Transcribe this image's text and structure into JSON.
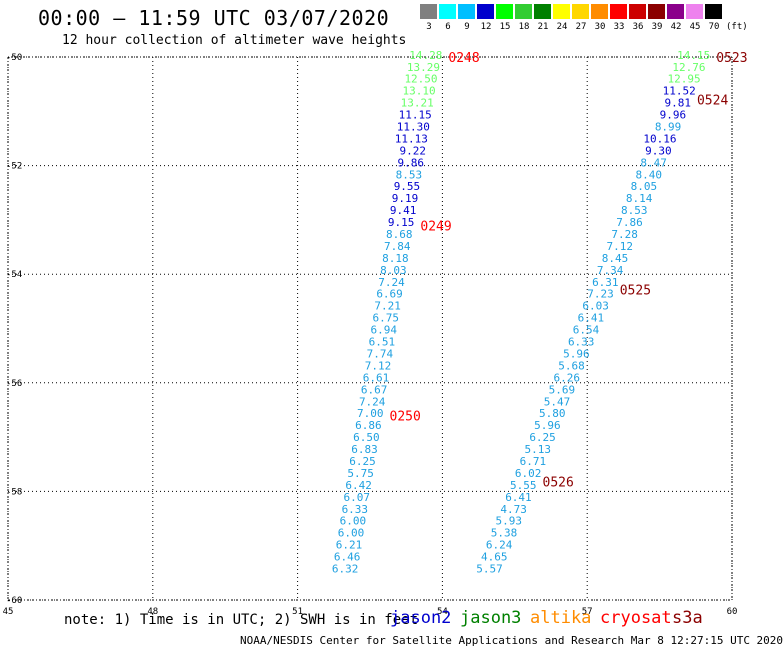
{
  "title": "00:00 – 11:59 UTC 03/07/2020",
  "subtitle": "12 hour collection of altimeter wave heights",
  "legend": {
    "unit": "(ft)",
    "bins": [
      {
        "label": "3",
        "color": "#808080"
      },
      {
        "label": "6",
        "color": "#00ffff"
      },
      {
        "label": "9",
        "color": "#00bfff"
      },
      {
        "label": "12",
        "color": "#0000cd"
      },
      {
        "label": "15",
        "color": "#00ff00"
      },
      {
        "label": "18",
        "color": "#32cd32"
      },
      {
        "label": "21",
        "color": "#008000"
      },
      {
        "label": "24",
        "color": "#ffff00"
      },
      {
        "label": "27",
        "color": "#ffd700"
      },
      {
        "label": "30",
        "color": "#ff8c00"
      },
      {
        "label": "33",
        "color": "#ff0000"
      },
      {
        "label": "36",
        "color": "#cd0000"
      },
      {
        "label": "39",
        "color": "#8b0000"
      },
      {
        "label": "42",
        "color": "#8b008b"
      },
      {
        "label": "45",
        "color": "#ee82ee"
      },
      {
        "label": "70",
        "color": "#000000"
      }
    ]
  },
  "map": {
    "lon_range": [
      45,
      60
    ],
    "lat_range": [
      -60,
      -50
    ],
    "x_ticks": [
      "45",
      "48",
      "51",
      "54",
      "57",
      "60"
    ],
    "y_ticks": [
      "-50",
      "-52",
      "-54",
      "-56",
      "-58",
      "-60"
    ],
    "grid": "dotted"
  },
  "tracks": [
    {
      "labels": [
        {
          "text": "0248",
          "lat": -50.0,
          "color": "#ff0000"
        },
        {
          "text": "0249",
          "lat": -53.1,
          "color": "#ff0000"
        },
        {
          "text": "0250",
          "lat": -56.6,
          "color": "#ff0000"
        }
      ],
      "points": [
        {
          "v": "14.28",
          "lat": -49.96,
          "lon": 54.0,
          "color": "#66ff66"
        },
        {
          "v": "13.29",
          "lat": -50.18,
          "lon": 53.95,
          "color": "#66ff66"
        },
        {
          "v": "12.50",
          "lat": -50.4,
          "lon": 53.9,
          "color": "#66ff66"
        },
        {
          "v": "13.10",
          "lat": -50.62,
          "lon": 53.86,
          "color": "#66ff66"
        },
        {
          "v": "13.21",
          "lat": -50.84,
          "lon": 53.82,
          "color": "#66ff66"
        },
        {
          "v": "11.15",
          "lat": -51.06,
          "lon": 53.78,
          "color": "#0000cd"
        },
        {
          "v": "11.30",
          "lat": -51.28,
          "lon": 53.74,
          "color": "#0000cd"
        },
        {
          "v": "11.13",
          "lat": -51.5,
          "lon": 53.7,
          "color": "#0000cd"
        },
        {
          "v": "9.22",
          "lat": -51.72,
          "lon": 53.66,
          "color": "#0000cd"
        },
        {
          "v": "9.86",
          "lat": -51.94,
          "lon": 53.62,
          "color": "#0000cd"
        },
        {
          "v": "8.53",
          "lat": -52.16,
          "lon": 53.58,
          "color": "#1fa0e0"
        },
        {
          "v": "9.55",
          "lat": -52.38,
          "lon": 53.54,
          "color": "#0000cd"
        },
        {
          "v": "9.19",
          "lat": -52.6,
          "lon": 53.5,
          "color": "#0000cd"
        },
        {
          "v": "9.41",
          "lat": -52.82,
          "lon": 53.46,
          "color": "#0000cd"
        },
        {
          "v": "9.15",
          "lat": -53.04,
          "lon": 53.42,
          "color": "#0000cd"
        },
        {
          "v": "8.68",
          "lat": -53.26,
          "lon": 53.38,
          "color": "#1fa0e0"
        },
        {
          "v": "7.84",
          "lat": -53.48,
          "lon": 53.34,
          "color": "#1fa0e0"
        },
        {
          "v": "8.18",
          "lat": -53.7,
          "lon": 53.3,
          "color": "#1fa0e0"
        },
        {
          "v": "8.03",
          "lat": -53.92,
          "lon": 53.26,
          "color": "#1fa0e0"
        },
        {
          "v": "7.24",
          "lat": -54.14,
          "lon": 53.22,
          "color": "#1fa0e0"
        },
        {
          "v": "6.69",
          "lat": -54.36,
          "lon": 53.18,
          "color": "#1fa0e0"
        },
        {
          "v": "7.21",
          "lat": -54.58,
          "lon": 53.14,
          "color": "#1fa0e0"
        },
        {
          "v": "6.75",
          "lat": -54.8,
          "lon": 53.1,
          "color": "#1fa0e0"
        },
        {
          "v": "6.94",
          "lat": -55.02,
          "lon": 53.06,
          "color": "#1fa0e0"
        },
        {
          "v": "6.51",
          "lat": -55.24,
          "lon": 53.02,
          "color": "#1fa0e0"
        },
        {
          "v": "7.74",
          "lat": -55.46,
          "lon": 52.98,
          "color": "#1fa0e0"
        },
        {
          "v": "7.12",
          "lat": -55.68,
          "lon": 52.94,
          "color": "#1fa0e0"
        },
        {
          "v": "6.61",
          "lat": -55.9,
          "lon": 52.9,
          "color": "#1fa0e0"
        },
        {
          "v": "6.67",
          "lat": -56.12,
          "lon": 52.86,
          "color": "#1fa0e0"
        },
        {
          "v": "7.24",
          "lat": -56.34,
          "lon": 52.82,
          "color": "#1fa0e0"
        },
        {
          "v": "7.00",
          "lat": -56.56,
          "lon": 52.78,
          "color": "#1fa0e0"
        },
        {
          "v": "6.86",
          "lat": -56.78,
          "lon": 52.74,
          "color": "#1fa0e0"
        },
        {
          "v": "6.50",
          "lat": -57.0,
          "lon": 52.7,
          "color": "#1fa0e0"
        },
        {
          "v": "6.83",
          "lat": -57.22,
          "lon": 52.66,
          "color": "#1fa0e0"
        },
        {
          "v": "6.25",
          "lat": -57.44,
          "lon": 52.62,
          "color": "#1fa0e0"
        },
        {
          "v": "5.75",
          "lat": -57.66,
          "lon": 52.58,
          "color": "#1fa0e0"
        },
        {
          "v": "6.42",
          "lat": -57.88,
          "lon": 52.54,
          "color": "#1fa0e0"
        },
        {
          "v": "6.07",
          "lat": -58.1,
          "lon": 52.5,
          "color": "#1fa0e0"
        },
        {
          "v": "6.33",
          "lat": -58.32,
          "lon": 52.46,
          "color": "#1fa0e0"
        },
        {
          "v": "6.00",
          "lat": -58.54,
          "lon": 52.42,
          "color": "#1fa0e0"
        },
        {
          "v": "6.00",
          "lat": -58.76,
          "lon": 52.38,
          "color": "#1fa0e0"
        },
        {
          "v": "6.21",
          "lat": -58.98,
          "lon": 52.34,
          "color": "#1fa0e0"
        },
        {
          "v": "6.46",
          "lat": -59.2,
          "lon": 52.3,
          "color": "#1fa0e0"
        },
        {
          "v": "6.32",
          "lat": -59.42,
          "lon": 52.26,
          "color": "#1fa0e0"
        }
      ]
    },
    {
      "labels": [
        {
          "text": "0523",
          "lat": -50.0,
          "color": "#8b0000"
        },
        {
          "text": "0524",
          "lat": -50.78,
          "color": "#8b0000"
        },
        {
          "text": "0525",
          "lat": -54.28,
          "color": "#8b0000"
        },
        {
          "text": "0526",
          "lat": -57.82,
          "color": "#8b0000"
        }
      ],
      "points": [
        {
          "v": "14.15",
          "lat": -49.96,
          "lon": 59.55,
          "color": "#66ff66"
        },
        {
          "v": "12.76",
          "lat": -50.18,
          "lon": 59.45,
          "color": "#66ff66"
        },
        {
          "v": "12.95",
          "lat": -50.4,
          "lon": 59.35,
          "color": "#66ff66"
        },
        {
          "v": "11.52",
          "lat": -50.62,
          "lon": 59.25,
          "color": "#0000cd"
        },
        {
          "v": "9.81",
          "lat": -50.84,
          "lon": 59.15,
          "color": "#0000cd"
        },
        {
          "v": "9.96",
          "lat": -51.06,
          "lon": 59.05,
          "color": "#0000cd"
        },
        {
          "v": "8.99",
          "lat": -51.28,
          "lon": 58.95,
          "color": "#1fa0e0"
        },
        {
          "v": "10.16",
          "lat": -51.5,
          "lon": 58.85,
          "color": "#0000cd"
        },
        {
          "v": "9.30",
          "lat": -51.72,
          "lon": 58.75,
          "color": "#0000cd"
        },
        {
          "v": "8.47",
          "lat": -51.94,
          "lon": 58.65,
          "color": "#1fa0e0"
        },
        {
          "v": "8.40",
          "lat": -52.16,
          "lon": 58.55,
          "color": "#1fa0e0"
        },
        {
          "v": "8.05",
          "lat": -52.38,
          "lon": 58.45,
          "color": "#1fa0e0"
        },
        {
          "v": "8.14",
          "lat": -52.6,
          "lon": 58.35,
          "color": "#1fa0e0"
        },
        {
          "v": "8.53",
          "lat": -52.82,
          "lon": 58.25,
          "color": "#1fa0e0"
        },
        {
          "v": "7.86",
          "lat": -53.04,
          "lon": 58.15,
          "color": "#1fa0e0"
        },
        {
          "v": "7.28",
          "lat": -53.26,
          "lon": 58.05,
          "color": "#1fa0e0"
        },
        {
          "v": "7.12",
          "lat": -53.48,
          "lon": 57.95,
          "color": "#1fa0e0"
        },
        {
          "v": "8.45",
          "lat": -53.7,
          "lon": 57.85,
          "color": "#1fa0e0"
        },
        {
          "v": "7.34",
          "lat": -53.92,
          "lon": 57.75,
          "color": "#1fa0e0"
        },
        {
          "v": "6.31",
          "lat": -54.14,
          "lon": 57.65,
          "color": "#1fa0e0"
        },
        {
          "v": "7.23",
          "lat": -54.36,
          "lon": 57.55,
          "color": "#1fa0e0"
        },
        {
          "v": "6.03",
          "lat": -54.58,
          "lon": 57.45,
          "color": "#1fa0e0"
        },
        {
          "v": "6.41",
          "lat": -54.8,
          "lon": 57.35,
          "color": "#1fa0e0"
        },
        {
          "v": "6.54",
          "lat": -55.02,
          "lon": 57.25,
          "color": "#1fa0e0"
        },
        {
          "v": "6.33",
          "lat": -55.24,
          "lon": 57.15,
          "color": "#1fa0e0"
        },
        {
          "v": "5.96",
          "lat": -55.46,
          "lon": 57.05,
          "color": "#1fa0e0"
        },
        {
          "v": "5.68",
          "lat": -55.68,
          "lon": 56.95,
          "color": "#1fa0e0"
        },
        {
          "v": "6.26",
          "lat": -55.9,
          "lon": 56.85,
          "color": "#1fa0e0"
        },
        {
          "v": "5.69",
          "lat": -56.12,
          "lon": 56.75,
          "color": "#1fa0e0"
        },
        {
          "v": "5.47",
          "lat": -56.34,
          "lon": 56.65,
          "color": "#1fa0e0"
        },
        {
          "v": "5.80",
          "lat": -56.56,
          "lon": 56.55,
          "color": "#1fa0e0"
        },
        {
          "v": "5.96",
          "lat": -56.78,
          "lon": 56.45,
          "color": "#1fa0e0"
        },
        {
          "v": "6.25",
          "lat": -57.0,
          "lon": 56.35,
          "color": "#1fa0e0"
        },
        {
          "v": "5.13",
          "lat": -57.22,
          "lon": 56.25,
          "color": "#1fa0e0"
        },
        {
          "v": "6.71",
          "lat": -57.44,
          "lon": 56.15,
          "color": "#1fa0e0"
        },
        {
          "v": "6.02",
          "lat": -57.66,
          "lon": 56.05,
          "color": "#1fa0e0"
        },
        {
          "v": "5.55",
          "lat": -57.88,
          "lon": 55.95,
          "color": "#1fa0e0"
        },
        {
          "v": "6.41",
          "lat": -58.1,
          "lon": 55.85,
          "color": "#1fa0e0"
        },
        {
          "v": "4.73",
          "lat": -58.32,
          "lon": 55.75,
          "color": "#1fa0e0"
        },
        {
          "v": "5.93",
          "lat": -58.54,
          "lon": 55.65,
          "color": "#1fa0e0"
        },
        {
          "v": "5.38",
          "lat": -58.76,
          "lon": 55.55,
          "color": "#1fa0e0"
        },
        {
          "v": "6.24",
          "lat": -58.98,
          "lon": 55.45,
          "color": "#1fa0e0"
        },
        {
          "v": "4.65",
          "lat": -59.2,
          "lon": 55.35,
          "color": "#1fa0e0"
        },
        {
          "v": "5.57",
          "lat": -59.42,
          "lon": 55.25,
          "color": "#1fa0e0"
        }
      ]
    }
  ],
  "note": "note: 1) Time is in UTC; 2) SWH is in feet",
  "satellites": [
    {
      "name": "jason2",
      "color": "#0000cd"
    },
    {
      "name": "jason3",
      "color": "#008000"
    },
    {
      "name": "altika",
      "color": "#ff8c00"
    },
    {
      "name": "cryosat",
      "color": "#ff0000"
    },
    {
      "name": "s3a",
      "color": "#8b0000"
    }
  ],
  "footer": "NOAA/NESDIS Center for Satellite Applications and Research   Mar  8 12:27:15 UTC 2020"
}
